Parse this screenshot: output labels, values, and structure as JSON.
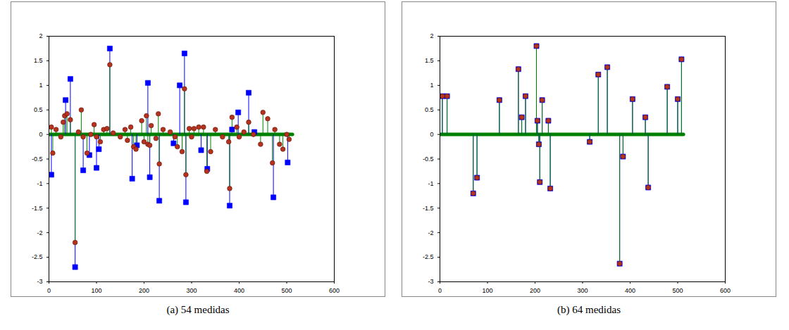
{
  "chart_data": [
    {
      "type": "stem",
      "title": "(a) 54 medidas",
      "xlim": [
        0,
        600
      ],
      "xticks": [
        0,
        100,
        200,
        300,
        400,
        500,
        600
      ],
      "ylim": [
        -3,
        2
      ],
      "yticks": [
        -3,
        -2.5,
        -2,
        -1.5,
        -1,
        -0.5,
        0,
        0.5,
        1,
        1.5,
        2
      ],
      "series": [
        {
          "color": "#0000ff",
          "marker": "square",
          "x": [
            5,
            35,
            45,
            55,
            72,
            85,
            100,
            105,
            128,
            175,
            185,
            208,
            212,
            232,
            262,
            275,
            285,
            288,
            320,
            333,
            380,
            385,
            398,
            420,
            432,
            472,
            502
          ],
          "values": [
            -0.82,
            0.7,
            1.13,
            -2.7,
            -0.73,
            -0.42,
            -0.68,
            -0.3,
            1.75,
            -0.9,
            -0.22,
            1.05,
            -0.87,
            -1.35,
            -0.18,
            1.0,
            1.65,
            -1.38,
            -0.32,
            -0.7,
            -1.45,
            0.1,
            0.45,
            0.85,
            0.05,
            -1.28,
            -0.57
          ]
        },
        {
          "color": "#008000",
          "marker": "circle",
          "x": [
            5,
            8,
            15,
            25,
            30,
            33,
            38,
            45,
            55,
            62,
            68,
            72,
            80,
            88,
            95,
            100,
            108,
            115,
            122,
            128,
            135,
            150,
            160,
            165,
            172,
            178,
            183,
            195,
            200,
            205,
            208,
            212,
            215,
            225,
            230,
            232,
            240,
            255,
            265,
            270,
            280,
            285,
            288,
            295,
            300,
            305,
            315,
            325,
            332,
            340,
            350,
            365,
            378,
            380,
            385,
            395,
            400,
            410,
            420,
            430,
            445,
            450,
            460,
            470,
            475,
            485,
            492,
            500,
            505
          ],
          "values": [
            0.15,
            -0.38,
            0.1,
            -0.05,
            0.25,
            0.38,
            0.42,
            0.3,
            -2.2,
            0.05,
            0.5,
            -0.05,
            -0.38,
            0.0,
            0.2,
            -0.05,
            -0.15,
            0.1,
            0.12,
            1.42,
            0.03,
            -0.05,
            0.1,
            -0.12,
            0.15,
            -0.25,
            -0.3,
            0.28,
            -0.15,
            0.38,
            -0.2,
            -0.22,
            0.18,
            -0.08,
            0.42,
            -0.6,
            0.1,
            0.05,
            -0.05,
            -0.25,
            -0.35,
            0.93,
            -0.82,
            0.12,
            -0.05,
            0.12,
            0.15,
            0.15,
            -0.75,
            -0.35,
            0.1,
            -0.05,
            -0.15,
            -1.1,
            0.35,
            0.15,
            -0.05,
            0.05,
            0.25,
            0.0,
            -0.2,
            0.45,
            0.32,
            -0.58,
            0.1,
            -0.2,
            -0.3,
            0.0,
            -0.1
          ]
        },
        {
          "type": "line",
          "color": "#008000",
          "x": [
            0,
            512
          ],
          "values": [
            0,
            0
          ]
        }
      ]
    },
    {
      "type": "stem",
      "title": "(b) 64 medidas",
      "xlim": [
        0,
        600
      ],
      "xticks": [
        0,
        100,
        200,
        300,
        400,
        500,
        600
      ],
      "ylim": [
        -3,
        2
      ],
      "yticks": [
        -3,
        -2.5,
        -2,
        -1.5,
        -1,
        -0.5,
        0,
        0.5,
        1,
        1.5,
        2
      ],
      "series": [
        {
          "color": "#0000ff",
          "marker": "square",
          "x": [
            5,
            15,
            70,
            78,
            125,
            165,
            172,
            180,
            203,
            205,
            208,
            210,
            215,
            228,
            232,
            315,
            333,
            352,
            378,
            385,
            405,
            432,
            438,
            478,
            500,
            508
          ],
          "values": [
            0.78,
            0.78,
            -1.2,
            -0.88,
            0.7,
            1.33,
            0.35,
            0.78,
            1.8,
            0.28,
            -0.2,
            -0.97,
            0.7,
            0.28,
            -1.1,
            -0.15,
            1.22,
            1.37,
            -2.63,
            -0.45,
            0.72,
            0.35,
            -1.08,
            0.97,
            0.72,
            1.53
          ]
        },
        {
          "color": "#008000",
          "marker": "circle",
          "x": [
            5,
            15,
            70,
            78,
            125,
            165,
            172,
            180,
            203,
            205,
            208,
            210,
            215,
            228,
            232,
            315,
            333,
            352,
            378,
            385,
            405,
            432,
            438,
            478,
            500,
            508
          ],
          "values": [
            0.78,
            0.78,
            -1.2,
            -0.88,
            0.7,
            1.33,
            0.35,
            0.78,
            1.8,
            0.28,
            -0.2,
            -0.97,
            0.7,
            0.28,
            -1.1,
            -0.15,
            1.22,
            1.37,
            -2.63,
            -0.45,
            0.72,
            0.35,
            -1.08,
            0.97,
            0.72,
            1.53
          ]
        },
        {
          "type": "line",
          "color": "#008000",
          "x": [
            0,
            512
          ],
          "values": [
            0,
            0
          ]
        }
      ]
    }
  ]
}
